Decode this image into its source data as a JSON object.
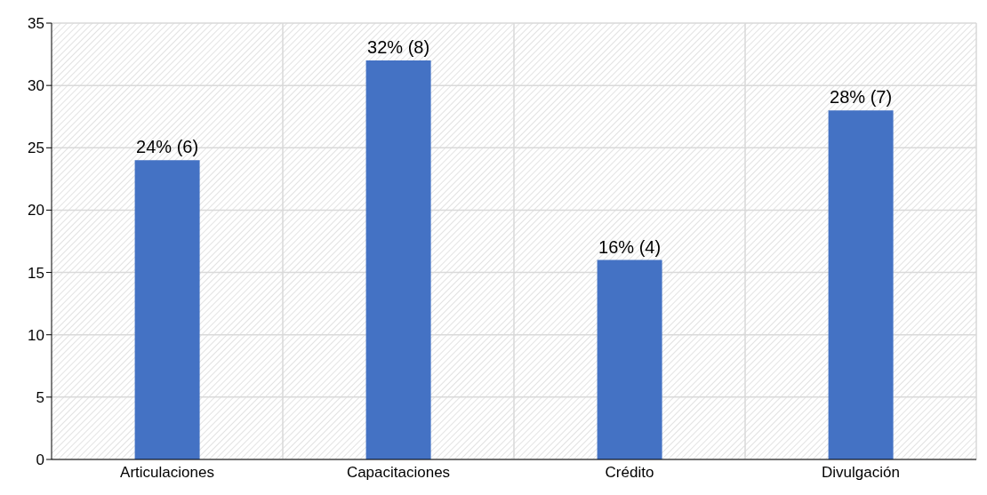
{
  "chart_data": {
    "type": "bar",
    "categories": [
      "Articulaciones",
      "Capacitaciones",
      "Crédito",
      "Divulgación"
    ],
    "values": [
      24,
      32,
      16,
      28
    ],
    "value_labels": [
      "24% (6)",
      "32% (8)",
      "16% (4)",
      "28% (7)"
    ],
    "color": "#4472c4",
    "ylim": [
      0,
      35
    ],
    "yticks": [
      0,
      5,
      10,
      15,
      20,
      25,
      30,
      35
    ],
    "grid": true,
    "legend": false
  }
}
